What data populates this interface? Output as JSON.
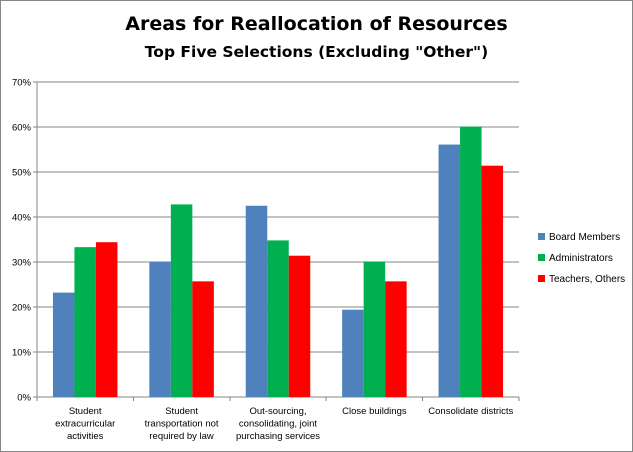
{
  "chart_data": {
    "type": "bar",
    "title": "Areas for Reallocation of Resources",
    "subtitle": "Top Five Selections (Excluding \"Other\")",
    "categories": [
      [
        "Student",
        "extracurricular",
        "activities"
      ],
      [
        "Student",
        "transportation not",
        "required by law"
      ],
      [
        "Out-sourcing,",
        "consolidating, joint",
        "purchasing services"
      ],
      [
        "Close buildings"
      ],
      [
        "Consolidate districts"
      ]
    ],
    "series": [
      {
        "name": "Board Members",
        "color": "#4F81BD",
        "values": [
          23.2,
          30.1,
          42.5,
          19.4,
          56.1
        ]
      },
      {
        "name": "Administrators",
        "color": "#00B050",
        "values": [
          33.3,
          42.8,
          34.8,
          30.1,
          60.1
        ]
      },
      {
        "name": "Teachers, Others",
        "color": "#FF0000",
        "values": [
          34.4,
          25.7,
          31.4,
          25.7,
          51.4
        ]
      }
    ],
    "ylim": [
      0,
      70
    ],
    "yticks": [
      0,
      10,
      20,
      30,
      40,
      50,
      60,
      70
    ],
    "ytick_format": "percent",
    "grid": true,
    "legend_position": "right"
  }
}
